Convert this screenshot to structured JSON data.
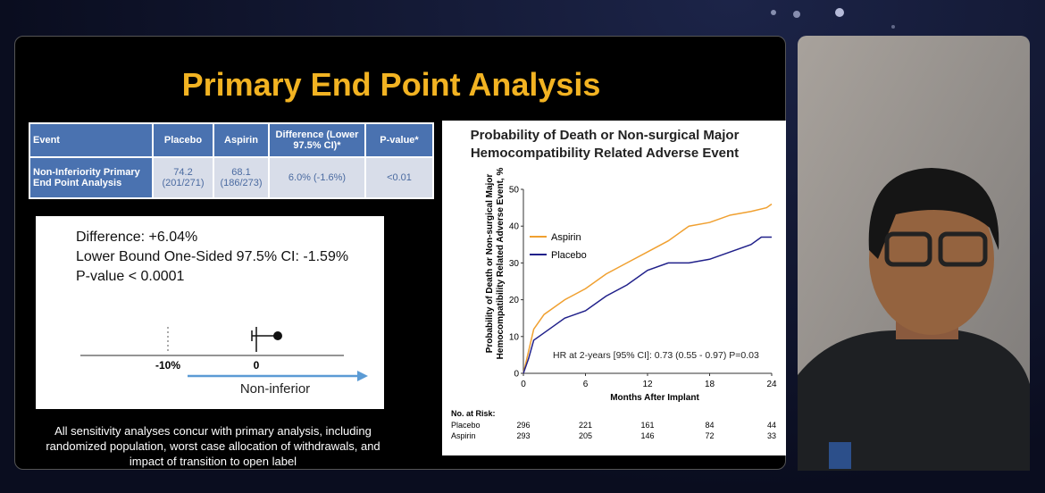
{
  "slide": {
    "title": "Primary End Point Analysis",
    "table": {
      "header": [
        "Event",
        "Placebo",
        "Aspirin",
        "Difference (Lower 97.5% CI)*",
        "P-value*"
      ],
      "rows": [
        [
          "Non-Inferiority Primary End Point Analysis",
          "74.2 (201/271)",
          "68.1 (186/273)",
          "6.0% (-1.6%)",
          "<0.01"
        ]
      ]
    },
    "box": {
      "lines": [
        "Difference: +6.04%",
        "Lower Bound One-Sided 97.5% CI: -1.59%",
        "P-value < 0.0001"
      ],
      "ticks": [
        "-10%",
        "0"
      ],
      "arrow_label": "Non-inferior"
    },
    "footnote": [
      "All sensitivity analyses concur with primary analysis, including",
      "randomized population, worst case allocation of withdrawals, and",
      "impact of transition to open label"
    ],
    "risk_table": {
      "title": "No. at Risk:",
      "rows": [
        {
          "name": "Placebo",
          "values": [
            296,
            221,
            161,
            84,
            44
          ]
        },
        {
          "name": "Aspirin",
          "values": [
            293,
            205,
            146,
            72,
            33
          ]
        }
      ]
    }
  },
  "chart_data": {
    "type": "line",
    "title": [
      "Probability of Death or Non-surgical Major",
      "Hemocompatibility Related Adverse Event"
    ],
    "ylabel": [
      "Probability of Death or Non-surgical Major",
      "Hemocompatibility Related Adverse Event, %"
    ],
    "xlabel": "Months After Implant",
    "annotation": "HR at 2-years [95% CI]: 0.73 (0.55 - 0.97) P=0.03",
    "xlim": [
      0,
      24
    ],
    "xticks": [
      0,
      6,
      12,
      18,
      24
    ],
    "ylim": [
      0,
      50
    ],
    "yticks": [
      0,
      10,
      20,
      30,
      40,
      50
    ],
    "series": [
      {
        "name": "Aspirin",
        "color": "#f0a030",
        "x": [
          0,
          0.5,
          1,
          2,
          3,
          4,
          6,
          8,
          10,
          12,
          14,
          16,
          18,
          20,
          22,
          23.5,
          24
        ],
        "values": [
          0,
          6,
          12,
          16,
          18,
          20,
          23,
          27,
          30,
          33,
          36,
          40,
          41,
          43,
          44,
          45,
          46
        ]
      },
      {
        "name": "Placebo",
        "color": "#20208a",
        "x": [
          0,
          0.5,
          1,
          2,
          3,
          4,
          6,
          8,
          10,
          12,
          14,
          16,
          18,
          20,
          22,
          23,
          24
        ],
        "values": [
          0,
          4,
          9,
          11,
          13,
          15,
          17,
          21,
          24,
          28,
          30,
          30,
          31,
          33,
          35,
          37,
          37
        ]
      }
    ]
  }
}
